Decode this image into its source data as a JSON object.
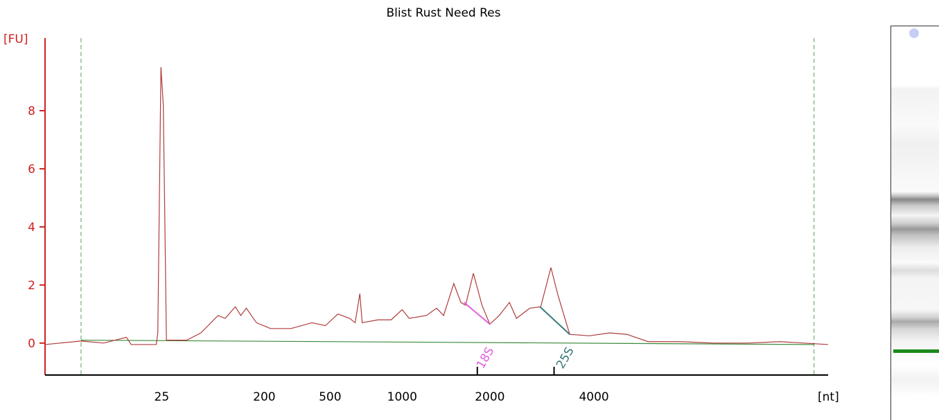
{
  "chart_data": {
    "type": "line",
    "title": "Blist Rust Need Res",
    "y_label": "[FU]",
    "x_label": "[nt]",
    "color": "#b03a3a",
    "x": [
      0,
      46,
      75,
      104,
      110,
      142,
      144,
      148,
      151,
      155,
      181,
      199,
      221,
      230,
      243,
      250,
      257,
      270,
      288,
      314,
      341,
      358,
      374,
      389,
      396,
      402,
      405,
      425,
      442,
      456,
      465,
      487,
      500,
      509,
      522,
      531,
      537,
      547,
      558,
      568,
      580,
      593,
      602,
      619,
      633,
      646,
      655,
      670,
      695,
      721,
      743,
      770,
      810,
      854,
      898,
      938,
      969,
      1000
    ],
    "values": [
      -0.05,
      0.07,
      0,
      0.2,
      -0.05,
      -0.05,
      0.35,
      9.5,
      8.2,
      0.1,
      0.1,
      0.35,
      0.95,
      0.85,
      1.25,
      0.95,
      1.2,
      0.7,
      0.5,
      0.5,
      0.7,
      0.6,
      1.0,
      0.85,
      0.7,
      1.7,
      0.7,
      0.8,
      0.8,
      1.15,
      0.85,
      0.95,
      1.2,
      0.95,
      2.05,
      1.4,
      1.3,
      2.4,
      1.3,
      0.65,
      0.95,
      1.4,
      0.85,
      1.2,
      1.25,
      2.6,
      1.65,
      0.3,
      0.25,
      0.35,
      0.3,
      0.05,
      0.05,
      0,
      0,
      0.05,
      0,
      -0.05
    ],
    "xlim": [
      0,
      1000
    ],
    "ylim": [
      -1.1,
      10.5
    ],
    "xticks": [
      {
        "value": 149,
        "label": "25"
      },
      {
        "value": 280,
        "label": "200"
      },
      {
        "value": 364,
        "label": "500"
      },
      {
        "value": 456,
        "label": "1000"
      },
      {
        "value": 568,
        "label": "2000"
      },
      {
        "value": 701,
        "label": "4000"
      }
    ],
    "yticks": [
      0,
      2,
      4,
      6,
      8
    ],
    "baseline": {
      "color": "#3a8a3a",
      "x": [
        46,
        982
      ],
      "values": [
        0.1,
        -0.05
      ]
    },
    "markers": {
      "color": "#5a9a5a",
      "x": [
        46,
        982
      ]
    },
    "annotations": [
      {
        "text": "18S",
        "color": "#e060e0",
        "x": [
          535,
          568
        ],
        "values": [
          1.4,
          0.65
        ],
        "tick": 552
      },
      {
        "text": "25S",
        "color": "#3a7a7a",
        "x": [
          632,
          670
        ],
        "values": [
          1.25,
          0.3
        ],
        "tick": 650
      }
    ]
  }
}
